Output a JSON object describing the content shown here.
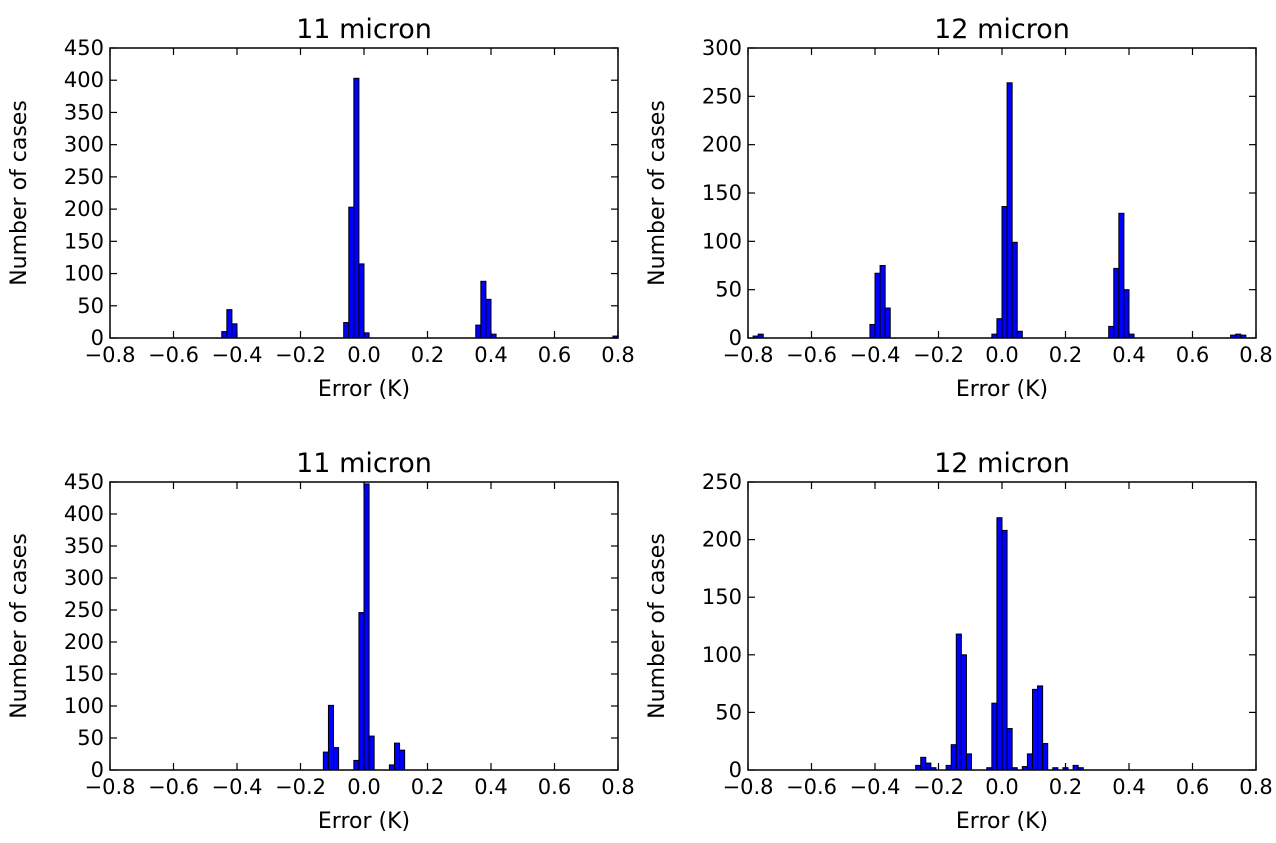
{
  "chart_data": [
    {
      "type": "bar",
      "title": "11 micron",
      "xlabel": "Error (K)",
      "ylabel": "Number of cases",
      "xlim": [
        -0.8,
        0.8
      ],
      "ylim": [
        0,
        450
      ],
      "xticks": [
        "−0.8",
        "−0.6",
        "−0.4",
        "−0.2",
        "0.0",
        "0.2",
        "0.4",
        "0.6",
        "0.8"
      ],
      "yticks": [
        "0",
        "50",
        "100",
        "150",
        "200",
        "250",
        "300",
        "350",
        "400",
        "450"
      ],
      "bin_width": 0.016,
      "bins": [
        {
          "x": -0.448,
          "y": 10
        },
        {
          "x": -0.432,
          "y": 44
        },
        {
          "x": -0.416,
          "y": 22
        },
        {
          "x": -0.064,
          "y": 24
        },
        {
          "x": -0.048,
          "y": 203
        },
        {
          "x": -0.032,
          "y": 403
        },
        {
          "x": -0.016,
          "y": 115
        },
        {
          "x": 0.0,
          "y": 8
        },
        {
          "x": 0.352,
          "y": 20
        },
        {
          "x": 0.368,
          "y": 88
        },
        {
          "x": 0.384,
          "y": 60
        },
        {
          "x": 0.4,
          "y": 6
        },
        {
          "x": 0.784,
          "y": 3
        }
      ]
    },
    {
      "type": "bar",
      "title": "12 micron",
      "xlabel": "Error (K)",
      "ylabel": "Number of cases",
      "xlim": [
        -0.8,
        0.8
      ],
      "ylim": [
        0,
        300
      ],
      "xticks": [
        "−0.8",
        "−0.6",
        "−0.4",
        "−0.2",
        "0.0",
        "0.2",
        "0.4",
        "0.6",
        "0.8"
      ],
      "yticks": [
        "0",
        "50",
        "100",
        "150",
        "200",
        "250",
        "300"
      ],
      "bin_width": 0.016,
      "bins": [
        {
          "x": -0.784,
          "y": 2
        },
        {
          "x": -0.768,
          "y": 4
        },
        {
          "x": -0.416,
          "y": 14
        },
        {
          "x": -0.4,
          "y": 67
        },
        {
          "x": -0.384,
          "y": 75
        },
        {
          "x": -0.368,
          "y": 31
        },
        {
          "x": -0.032,
          "y": 4
        },
        {
          "x": -0.016,
          "y": 20
        },
        {
          "x": 0.0,
          "y": 136
        },
        {
          "x": 0.016,
          "y": 264
        },
        {
          "x": 0.032,
          "y": 99
        },
        {
          "x": 0.048,
          "y": 7
        },
        {
          "x": 0.336,
          "y": 12
        },
        {
          "x": 0.352,
          "y": 72
        },
        {
          "x": 0.368,
          "y": 129
        },
        {
          "x": 0.384,
          "y": 50
        },
        {
          "x": 0.4,
          "y": 4
        },
        {
          "x": 0.72,
          "y": 3
        },
        {
          "x": 0.736,
          "y": 4
        },
        {
          "x": 0.752,
          "y": 3
        }
      ]
    },
    {
      "type": "bar",
      "title": "11 micron",
      "xlabel": "Error (K)",
      "ylabel": "Number of cases",
      "xlim": [
        -0.8,
        0.8
      ],
      "ylim": [
        0,
        450
      ],
      "xticks": [
        "−0.8",
        "−0.6",
        "−0.4",
        "−0.2",
        "0.0",
        "0.2",
        "0.4",
        "0.6",
        "0.8"
      ],
      "yticks": [
        "0",
        "50",
        "100",
        "150",
        "200",
        "250",
        "300",
        "350",
        "400",
        "450"
      ],
      "bin_width": 0.016,
      "bins": [
        {
          "x": -0.128,
          "y": 28
        },
        {
          "x": -0.112,
          "y": 101
        },
        {
          "x": -0.096,
          "y": 35
        },
        {
          "x": -0.032,
          "y": 15
        },
        {
          "x": -0.016,
          "y": 246
        },
        {
          "x": 0.0,
          "y": 447
        },
        {
          "x": 0.016,
          "y": 53
        },
        {
          "x": 0.08,
          "y": 8
        },
        {
          "x": 0.096,
          "y": 42
        },
        {
          "x": 0.112,
          "y": 31
        }
      ]
    },
    {
      "type": "bar",
      "title": "12 micron",
      "xlabel": "Error (K)",
      "ylabel": "Number of cases",
      "xlim": [
        -0.8,
        0.8
      ],
      "ylim": [
        0,
        250
      ],
      "xticks": [
        "−0.8",
        "−0.6",
        "−0.4",
        "−0.2",
        "0.0",
        "0.2",
        "0.4",
        "0.6",
        "0.8"
      ],
      "yticks": [
        "0",
        "50",
        "100",
        "150",
        "200",
        "250"
      ],
      "bin_width": 0.016,
      "bins": [
        {
          "x": -0.272,
          "y": 4
        },
        {
          "x": -0.256,
          "y": 11
        },
        {
          "x": -0.24,
          "y": 6
        },
        {
          "x": -0.224,
          "y": 2
        },
        {
          "x": -0.176,
          "y": 4
        },
        {
          "x": -0.16,
          "y": 22
        },
        {
          "x": -0.144,
          "y": 118
        },
        {
          "x": -0.128,
          "y": 100
        },
        {
          "x": -0.112,
          "y": 14
        },
        {
          "x": -0.048,
          "y": 2
        },
        {
          "x": -0.032,
          "y": 58
        },
        {
          "x": -0.016,
          "y": 219
        },
        {
          "x": 0.0,
          "y": 208
        },
        {
          "x": 0.016,
          "y": 36
        },
        {
          "x": 0.032,
          "y": 2
        },
        {
          "x": 0.064,
          "y": 3
        },
        {
          "x": 0.08,
          "y": 14
        },
        {
          "x": 0.096,
          "y": 70
        },
        {
          "x": 0.112,
          "y": 73
        },
        {
          "x": 0.128,
          "y": 23
        },
        {
          "x": 0.16,
          "y": 2
        },
        {
          "x": 0.192,
          "y": 2
        },
        {
          "x": 0.224,
          "y": 4
        },
        {
          "x": 0.24,
          "y": 2
        }
      ]
    }
  ]
}
